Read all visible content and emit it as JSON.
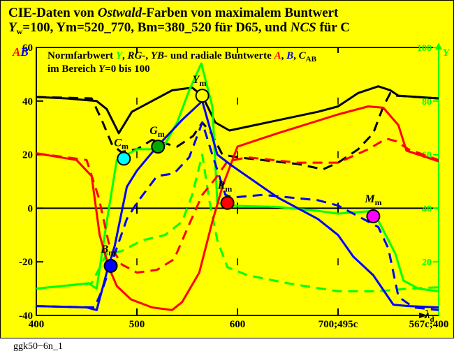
{
  "chart_data": {
    "type": "line",
    "title": {
      "line1_a": "CIE-Daten von ",
      "line1_b": "Ostwald",
      "line1_c": "-Farben von maximalem Buntwert",
      "line2_y": "Y",
      "line2_w": "w",
      "line2_rest": "=100, Ym=520_770, Bm=380_520 für D65, und ",
      "line2_ncs": "NCS",
      "line2_end": " für C"
    },
    "legend": {
      "line1": {
        "p1": "Normfarbwert ",
        "y": "Y",
        "p2": ", ",
        "rg": "RG-",
        "p3": ", ",
        "yb": "YB-",
        "p4": " und radiale Buntwerte ",
        "a": "A",
        "p5": ", ",
        "b": "B",
        "p6": ", ",
        "c": "C",
        "c_sub": "AB"
      },
      "line2": {
        "p1": "im Bereich ",
        "y": "Y",
        "p2": "=0 bis 100"
      }
    },
    "left_axis_label": {
      "a": "A",
      "b": "B"
    },
    "right_axis_label": "Y",
    "x_axis_label": {
      "main": "λ",
      "sub": "d"
    },
    "x_ticks": [
      {
        "v": 400,
        "label": "400"
      },
      {
        "v": 500,
        "label": "500"
      },
      {
        "v": 600,
        "label": "600"
      },
      {
        "v": 700,
        "label": "700;495c"
      },
      {
        "v": 800,
        "label": "567c;400"
      }
    ],
    "xlim": [
      400,
      800
    ],
    "ylim_left": [
      -40,
      60
    ],
    "left_ticks": [
      {
        "v": 60,
        "label": "60"
      },
      {
        "v": 40,
        "label": "40"
      },
      {
        "v": 20,
        "label": "20"
      },
      {
        "v": 0,
        "label": "0"
      },
      {
        "v": -20,
        "label": "-20"
      },
      {
        "v": -40,
        "label": "-40"
      }
    ],
    "ylim_right": [
      0,
      100
    ],
    "right_ticks": [
      {
        "v": 100,
        "label": "100"
      },
      {
        "v": 80,
        "label": "80"
      },
      {
        "v": 60,
        "label": "60"
      },
      {
        "v": 40,
        "label": "40"
      },
      {
        "v": 20,
        "label": "20"
      }
    ],
    "colors": {
      "background": "#ffff00",
      "black": "#000000",
      "red": "#ff0000",
      "green": "#00ff00",
      "blue": "#0000ff",
      "cyan": "#00ffff",
      "magenta": "#ff00ff"
    },
    "series": [
      {
        "color": "#000000",
        "style": "solid",
        "points": [
          [
            400,
            41.5
          ],
          [
            430,
            41
          ],
          [
            460,
            40
          ],
          [
            470,
            37
          ],
          [
            482,
            28
          ],
          [
            495,
            36
          ],
          [
            515,
            40
          ],
          [
            535,
            44
          ],
          [
            555,
            45
          ],
          [
            565,
            42
          ],
          [
            578,
            32
          ],
          [
            592,
            29
          ],
          [
            680,
            36
          ],
          [
            700,
            38
          ],
          [
            720,
            43
          ],
          [
            740,
            45.5
          ],
          [
            752,
            44
          ],
          [
            760,
            42
          ],
          [
            800,
            41
          ]
        ]
      },
      {
        "color": "#000000",
        "style": "dashed",
        "points": [
          [
            400,
            41.5
          ],
          [
            455,
            41
          ],
          [
            465,
            33
          ],
          [
            475,
            24
          ],
          [
            484,
            21
          ],
          [
            500,
            22
          ],
          [
            515,
            25.5
          ],
          [
            540,
            23
          ],
          [
            556,
            27
          ],
          [
            565,
            32
          ],
          [
            574,
            28
          ],
          [
            585,
            20
          ],
          [
            600,
            19
          ],
          [
            660,
            16.5
          ],
          [
            685,
            14.5
          ],
          [
            700,
            17
          ],
          [
            720,
            22
          ],
          [
            735,
            28
          ],
          [
            745,
            38
          ],
          [
            752,
            43
          ],
          [
            757,
            42
          ],
          [
            800,
            41
          ]
        ]
      },
      {
        "color": "#00ff00",
        "style": "solid",
        "points": [
          [
            400,
            -30
          ],
          [
            452,
            -28
          ],
          [
            460,
            -30
          ],
          [
            470,
            -5
          ],
          [
            480,
            18
          ],
          [
            500,
            22
          ],
          [
            525,
            22
          ],
          [
            540,
            32
          ],
          [
            552,
            44
          ],
          [
            564,
            54
          ],
          [
            575,
            38
          ],
          [
            580,
            2
          ],
          [
            590,
            1
          ],
          [
            640,
            0.5
          ],
          [
            680,
            -1
          ],
          [
            700,
            -2
          ],
          [
            735,
            -1
          ],
          [
            757,
            -17
          ],
          [
            765,
            -27
          ],
          [
            780,
            -30
          ],
          [
            800,
            -31
          ]
        ]
      },
      {
        "color": "#00ff00",
        "style": "dashed",
        "points": [
          [
            400,
            -30
          ],
          [
            455,
            -28
          ],
          [
            470,
            -17
          ],
          [
            485,
            -16
          ],
          [
            505,
            -12
          ],
          [
            528,
            -10
          ],
          [
            545,
            -5
          ],
          [
            555,
            5
          ],
          [
            565,
            20
          ],
          [
            572,
            3
          ],
          [
            580,
            -12
          ],
          [
            590,
            -22
          ],
          [
            610,
            -25
          ],
          [
            650,
            -28
          ],
          [
            700,
            -31
          ],
          [
            740,
            -31
          ],
          [
            770,
            -30
          ],
          [
            800,
            -29.5
          ]
        ]
      },
      {
        "color": "#ff0000",
        "style": "solid",
        "points": [
          [
            400,
            20.5
          ],
          [
            440,
            18
          ],
          [
            455,
            12
          ],
          [
            463,
            -10
          ],
          [
            472,
            -22
          ],
          [
            480,
            -29
          ],
          [
            494,
            -34
          ],
          [
            515,
            -37
          ],
          [
            535,
            -38
          ],
          [
            545,
            -35
          ],
          [
            562,
            -24
          ],
          [
            575,
            -5
          ],
          [
            585,
            8
          ],
          [
            600,
            23
          ],
          [
            640,
            28
          ],
          [
            700,
            35
          ],
          [
            730,
            38
          ],
          [
            745,
            37.5
          ],
          [
            760,
            31
          ],
          [
            768,
            21.5
          ],
          [
            800,
            17.5
          ]
        ]
      },
      {
        "color": "#ff0000",
        "style": "dashed",
        "points": [
          [
            400,
            20.5
          ],
          [
            450,
            18
          ],
          [
            462,
            4
          ],
          [
            472,
            -13
          ],
          [
            485,
            -21
          ],
          [
            500,
            -24
          ],
          [
            520,
            -23
          ],
          [
            537,
            -19
          ],
          [
            552,
            -6
          ],
          [
            565,
            5
          ],
          [
            578,
            11
          ],
          [
            590,
            17.5
          ],
          [
            610,
            19
          ],
          [
            660,
            17
          ],
          [
            700,
            17
          ],
          [
            730,
            22
          ],
          [
            748,
            26
          ],
          [
            758,
            25
          ],
          [
            770,
            22
          ],
          [
            800,
            18
          ]
        ]
      },
      {
        "color": "#0000ff",
        "style": "solid",
        "points": [
          [
            400,
            -36.5
          ],
          [
            450,
            -37
          ],
          [
            460,
            -38
          ],
          [
            470,
            -24
          ],
          [
            478,
            -14
          ],
          [
            490,
            8
          ],
          [
            500,
            14
          ],
          [
            520,
            23
          ],
          [
            545,
            33
          ],
          [
            565,
            40
          ],
          [
            580,
            20
          ],
          [
            594,
            16
          ],
          [
            640,
            4
          ],
          [
            680,
            -4
          ],
          [
            700,
            -10
          ],
          [
            715,
            -18
          ],
          [
            735,
            -25
          ],
          [
            755,
            -36
          ],
          [
            770,
            -36.5
          ],
          [
            800,
            -37
          ]
        ]
      },
      {
        "color": "#0000ff",
        "style": "dashed",
        "points": [
          [
            400,
            -36.5
          ],
          [
            458,
            -37
          ],
          [
            466,
            -30
          ],
          [
            478,
            -17
          ],
          [
            490,
            -4
          ],
          [
            500,
            2
          ],
          [
            520,
            12
          ],
          [
            537,
            13
          ],
          [
            552,
            19
          ],
          [
            565,
            32
          ],
          [
            575,
            20
          ],
          [
            588,
            5
          ],
          [
            595,
            4
          ],
          [
            625,
            5
          ],
          [
            680,
            3
          ],
          [
            700,
            1
          ],
          [
            720,
            -3
          ],
          [
            740,
            -7
          ],
          [
            750,
            -15
          ],
          [
            760,
            -33
          ],
          [
            775,
            -37
          ],
          [
            800,
            -38
          ]
        ]
      }
    ],
    "points": [
      {
        "label": "C",
        "sub": "m",
        "x": 487,
        "y": 18.5,
        "color": "#00ffff",
        "lx": -14,
        "ly": -18
      },
      {
        "label": "G",
        "sub": "m",
        "x": 521,
        "y": 23,
        "color": "#00aa00",
        "lx": -12,
        "ly": -18
      },
      {
        "label": "Y",
        "sub": "m",
        "x": 565,
        "y": 42,
        "color": "#ffff00",
        "lx": -14,
        "ly": -18
      },
      {
        "label": "R",
        "sub": "m",
        "x": 590,
        "y": 2,
        "color": "#ff0000",
        "lx": -14,
        "ly": -20
      },
      {
        "label": "M",
        "sub": "m",
        "x": 735,
        "y": -3,
        "color": "#ff00ff",
        "lx": -12,
        "ly": -20
      },
      {
        "label": "B",
        "sub": "m",
        "x": 474,
        "y": -21.5,
        "color": "#0000ff",
        "lx": -14,
        "ly": -19
      }
    ]
  },
  "footer": "ggk50−6n_1"
}
